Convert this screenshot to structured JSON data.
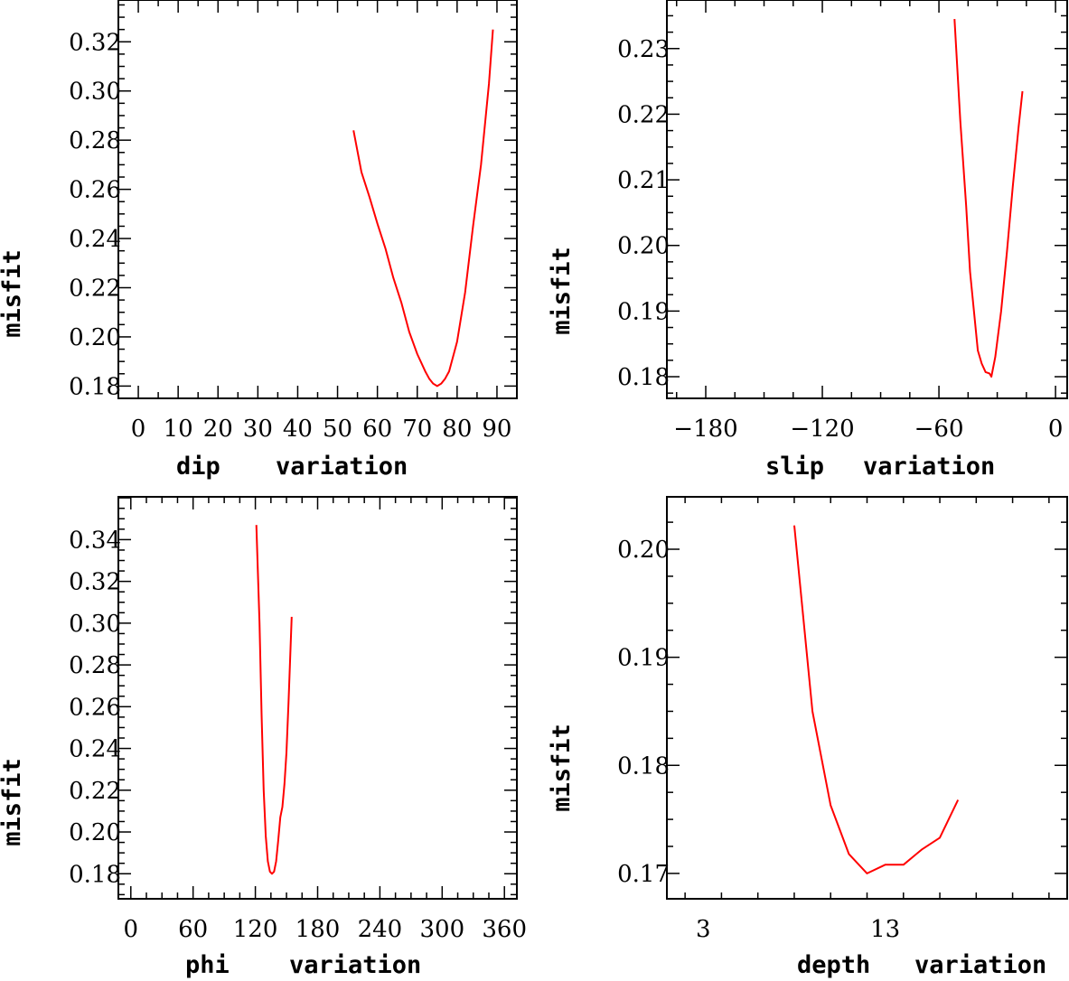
{
  "chart_data": [
    {
      "type": "line",
      "xlabel": "dip",
      "xlabel_suffix": "variation",
      "ylabel": "misfit",
      "xlim": [
        -5,
        95
      ],
      "ylim": [
        0.175,
        0.337
      ],
      "xticks": [
        0,
        10,
        20,
        30,
        40,
        50,
        60,
        70,
        80,
        90
      ],
      "yticks": [
        0.18,
        0.2,
        0.22,
        0.24,
        0.26,
        0.28,
        0.3,
        0.32
      ],
      "ytick_labels": [
        "0.18",
        "0.20",
        "0.22",
        "0.24",
        "0.26",
        "0.28",
        "0.30",
        "0.32"
      ],
      "series": [
        {
          "name": "misfit",
          "color": "#ff0000",
          "x": [
            54,
            56,
            58,
            60,
            62,
            64,
            66,
            68,
            70,
            72,
            73,
            74,
            75,
            76,
            77,
            78,
            80,
            82,
            84,
            86,
            88,
            89
          ],
          "y": [
            0.284,
            0.267,
            0.257,
            0.246,
            0.236,
            0.224,
            0.214,
            0.202,
            0.193,
            0.186,
            0.183,
            0.181,
            0.18,
            0.181,
            0.183,
            0.186,
            0.198,
            0.218,
            0.245,
            0.27,
            0.303,
            0.325
          ]
        }
      ]
    },
    {
      "type": "line",
      "xlabel": "slip",
      "xlabel_suffix": "variation",
      "ylabel": "misfit",
      "xlim": [
        -200,
        6
      ],
      "ylim": [
        0.1767,
        0.2374
      ],
      "xticks": [
        -180,
        -120,
        -60,
        0
      ],
      "xtick_labels": [
        "−180",
        "−120",
        "−60",
        "0"
      ],
      "yticks": [
        0.18,
        0.19,
        0.2,
        0.21,
        0.22,
        0.23
      ],
      "ytick_labels": [
        "0.18",
        "0.19",
        "0.20",
        "0.21",
        "0.22",
        "0.23"
      ],
      "series": [
        {
          "name": "misfit",
          "color": "#ff0000",
          "x": [
            -52,
            -49,
            -46,
            -44,
            -42,
            -40,
            -38,
            -36,
            -34,
            -33,
            -31,
            -28,
            -25,
            -22,
            -19,
            -17
          ],
          "y": [
            0.2345,
            0.219,
            0.206,
            0.196,
            0.19,
            0.184,
            0.182,
            0.1807,
            0.1805,
            0.18,
            0.183,
            0.19,
            0.199,
            0.209,
            0.218,
            0.2235
          ]
        }
      ]
    },
    {
      "type": "line",
      "xlabel": "phi",
      "xlabel_suffix": "variation",
      "ylabel": "misfit",
      "xlim": [
        -12,
        372
      ],
      "ylim": [
        0.168,
        0.3605
      ],
      "xticks": [
        0,
        60,
        120,
        180,
        240,
        300,
        360
      ],
      "yticks": [
        0.18,
        0.2,
        0.22,
        0.24,
        0.26,
        0.28,
        0.3,
        0.32,
        0.34
      ],
      "ytick_labels": [
        "0.18",
        "0.20",
        "0.22",
        "0.24",
        "0.26",
        "0.28",
        "0.30",
        "0.32",
        "0.34"
      ],
      "series": [
        {
          "name": "misfit",
          "color": "#ff0000",
          "x": [
            121,
            124,
            126,
            128,
            130,
            132,
            134,
            136,
            138,
            140,
            142,
            144,
            146,
            148,
            150,
            152,
            155
          ],
          "y": [
            0.347,
            0.3,
            0.256,
            0.22,
            0.198,
            0.186,
            0.181,
            0.18,
            0.181,
            0.186,
            0.196,
            0.207,
            0.212,
            0.223,
            0.238,
            0.262,
            0.303
          ]
        }
      ]
    },
    {
      "type": "line",
      "xlabel": "depth",
      "xlabel_suffix": "variation",
      "ylabel": "misfit",
      "xlim": [
        1,
        23
      ],
      "ylim": [
        0.16765,
        0.20485
      ],
      "xticks": [
        3,
        13
      ],
      "xtick_labels": [
        "3",
        "13"
      ],
      "yticks": [
        0.17,
        0.18,
        0.19,
        0.2
      ],
      "ytick_labels": [
        "0.17",
        "0.18",
        "0.19",
        "0.20"
      ],
      "series": [
        {
          "name": "misfit",
          "color": "#ff0000",
          "x": [
            8,
            9,
            10,
            11,
            12,
            13,
            14,
            15,
            16,
            17
          ],
          "y": [
            0.2022,
            0.185,
            0.1763,
            0.1718,
            0.17,
            0.1708,
            0.1708,
            0.1722,
            0.1733,
            0.1768
          ]
        }
      ]
    }
  ]
}
